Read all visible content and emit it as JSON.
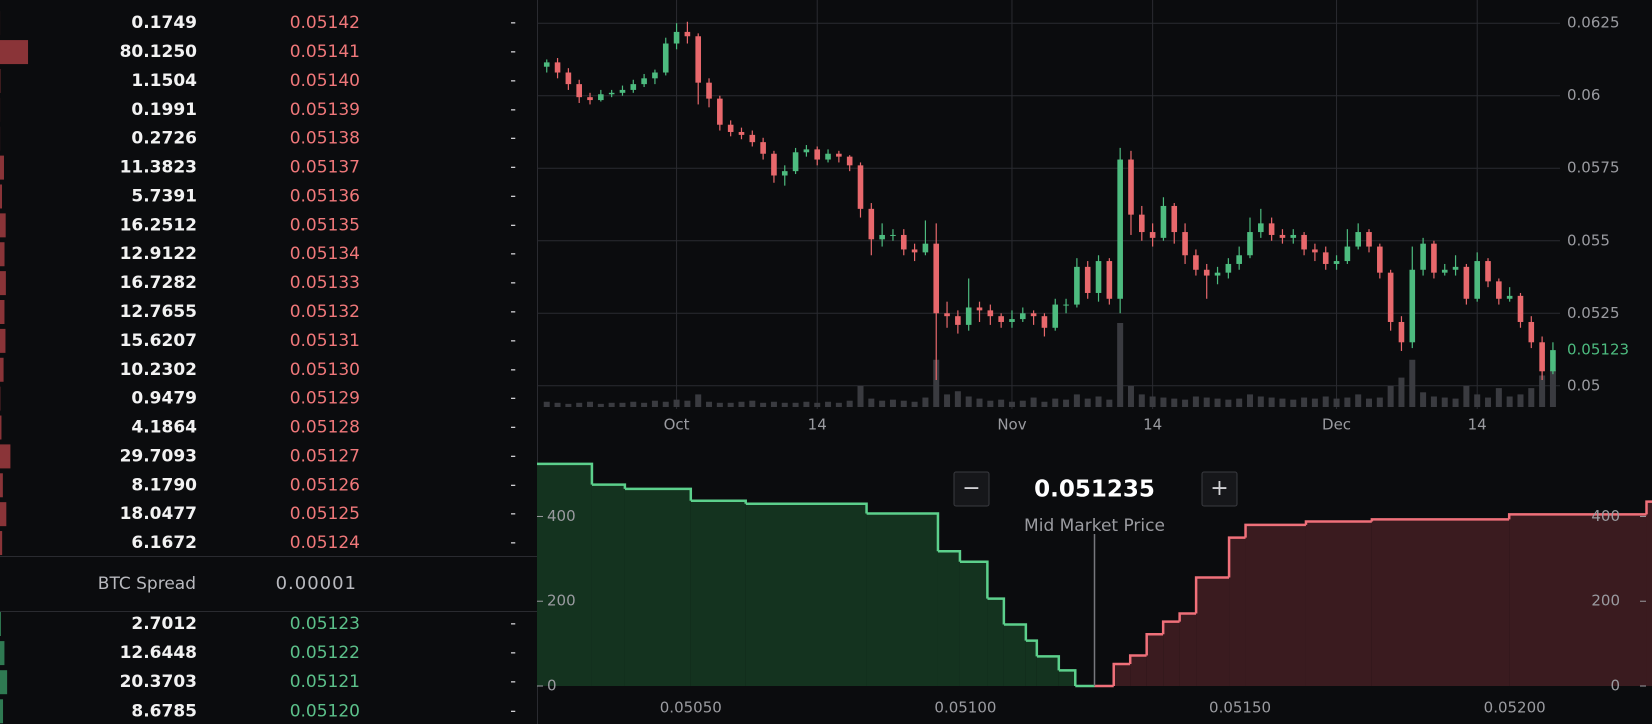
{
  "order_book": {
    "asks": [
      [
        "0.1749",
        "0.05142",
        "-"
      ],
      [
        "80.1250",
        "0.05141",
        "-"
      ],
      [
        "1.1504",
        "0.05140",
        "-"
      ],
      [
        "0.1991",
        "0.05139",
        "-"
      ],
      [
        "0.2726",
        "0.05138",
        "-"
      ],
      [
        "11.3823",
        "0.05137",
        "-"
      ],
      [
        "5.7391",
        "0.05136",
        "-"
      ],
      [
        "16.2512",
        "0.05135",
        "-"
      ],
      [
        "12.9122",
        "0.05134",
        "-"
      ],
      [
        "16.7282",
        "0.05133",
        "-"
      ],
      [
        "12.7655",
        "0.05132",
        "-"
      ],
      [
        "15.6207",
        "0.05131",
        "-"
      ],
      [
        "10.2302",
        "0.05130",
        "-"
      ],
      [
        "0.9479",
        "0.05129",
        "-"
      ],
      [
        "4.1864",
        "0.05128",
        "-"
      ],
      [
        "29.7093",
        "0.05127",
        "-"
      ],
      [
        "8.1790",
        "0.05126",
        "-"
      ],
      [
        "18.0477",
        "0.05125",
        "-"
      ],
      [
        "6.1672",
        "0.05124",
        "-"
      ]
    ],
    "spread": {
      "label": "BTC Spread",
      "value": "0.00001"
    },
    "bids": [
      [
        "2.7012",
        "0.05123",
        "-"
      ],
      [
        "12.6448",
        "0.05122",
        "-"
      ],
      [
        "20.3703",
        "0.05121",
        "-"
      ],
      [
        "8.6785",
        "0.05120",
        "-"
      ]
    ]
  },
  "controls": {
    "minus": "−",
    "plus": "+"
  },
  "chart_data": [
    {
      "type": "candlestick",
      "up_color": "#4dbb7f",
      "down_color": "#e8686c",
      "volume_color": "#3a3b40",
      "grid": true,
      "candles": [
        [
          0.061,
          0.06125,
          0.0608,
          0.06115
        ],
        [
          0.06115,
          0.0613,
          0.0606,
          0.0608
        ],
        [
          0.0608,
          0.06095,
          0.0602,
          0.0604
        ],
        [
          0.0604,
          0.06055,
          0.05975,
          0.05995
        ],
        [
          0.05995,
          0.0601,
          0.0597,
          0.05985
        ],
        [
          0.05985,
          0.0602,
          0.0598,
          0.06005
        ],
        [
          0.06005,
          0.0602,
          0.05995,
          0.0601
        ],
        [
          0.0601,
          0.06035,
          0.06,
          0.0602
        ],
        [
          0.0602,
          0.06055,
          0.0601,
          0.0604
        ],
        [
          0.0604,
          0.06075,
          0.0603,
          0.0606
        ],
        [
          0.0606,
          0.0609,
          0.0604,
          0.0608
        ],
        [
          0.0608,
          0.062,
          0.0607,
          0.0618
        ],
        [
          0.0618,
          0.0625,
          0.0616,
          0.0622
        ],
        [
          0.0622,
          0.06255,
          0.0618,
          0.06205
        ],
        [
          0.06205,
          0.06215,
          0.0597,
          0.06045
        ],
        [
          0.06045,
          0.0606,
          0.0596,
          0.0599
        ],
        [
          0.0599,
          0.06,
          0.0588,
          0.059
        ],
        [
          0.059,
          0.05915,
          0.0586,
          0.05875
        ],
        [
          0.05875,
          0.0589,
          0.0585,
          0.05865
        ],
        [
          0.05865,
          0.0588,
          0.05825,
          0.0584
        ],
        [
          0.0584,
          0.05855,
          0.0578,
          0.058
        ],
        [
          0.058,
          0.0581,
          0.057,
          0.05725
        ],
        [
          0.05725,
          0.0576,
          0.0569,
          0.0574
        ],
        [
          0.0574,
          0.0582,
          0.0573,
          0.05805
        ],
        [
          0.05805,
          0.0583,
          0.0579,
          0.05815
        ],
        [
          0.05815,
          0.05825,
          0.0576,
          0.0578
        ],
        [
          0.0578,
          0.05815,
          0.0577,
          0.058
        ],
        [
          0.058,
          0.0581,
          0.0577,
          0.0579
        ],
        [
          0.0579,
          0.05795,
          0.0574,
          0.0576
        ],
        [
          0.0576,
          0.0577,
          0.0558,
          0.0561
        ],
        [
          0.0561,
          0.0563,
          0.0545,
          0.05505
        ],
        [
          0.05505,
          0.0556,
          0.0548,
          0.0552
        ],
        [
          0.0552,
          0.0554,
          0.055,
          0.0552
        ],
        [
          0.0552,
          0.0554,
          0.0545,
          0.0547
        ],
        [
          0.0547,
          0.0549,
          0.0543,
          0.0546
        ],
        [
          0.0546,
          0.0557,
          0.0545,
          0.0549
        ],
        [
          0.0549,
          0.0556,
          0.0502,
          0.0525
        ],
        [
          0.0525,
          0.0529,
          0.052,
          0.0524
        ],
        [
          0.0524,
          0.0526,
          0.0518,
          0.0521
        ],
        [
          0.0521,
          0.0537,
          0.0519,
          0.0527
        ],
        [
          0.0527,
          0.0529,
          0.0522,
          0.0526
        ],
        [
          0.0526,
          0.0528,
          0.0521,
          0.0524
        ],
        [
          0.0524,
          0.0525,
          0.052,
          0.0522
        ],
        [
          0.0522,
          0.0526,
          0.052,
          0.0523
        ],
        [
          0.0523,
          0.0527,
          0.0522,
          0.0525
        ],
        [
          0.0525,
          0.0526,
          0.0521,
          0.0524
        ],
        [
          0.0524,
          0.0525,
          0.0517,
          0.052
        ],
        [
          0.052,
          0.053,
          0.0519,
          0.0528
        ],
        [
          0.0528,
          0.053,
          0.0525,
          0.0528
        ],
        [
          0.0528,
          0.0544,
          0.0527,
          0.0541
        ],
        [
          0.0541,
          0.0543,
          0.053,
          0.0532
        ],
        [
          0.0532,
          0.0545,
          0.0529,
          0.0543
        ],
        [
          0.0543,
          0.0544,
          0.0528,
          0.053
        ],
        [
          0.053,
          0.0582,
          0.0525,
          0.0578
        ],
        [
          0.0578,
          0.0581,
          0.0552,
          0.0559
        ],
        [
          0.0559,
          0.0562,
          0.055,
          0.0553
        ],
        [
          0.0553,
          0.0556,
          0.0548,
          0.0551
        ],
        [
          0.0551,
          0.0565,
          0.055,
          0.0562
        ],
        [
          0.0562,
          0.0563,
          0.0549,
          0.0553
        ],
        [
          0.0553,
          0.0556,
          0.0542,
          0.0545
        ],
        [
          0.0545,
          0.0547,
          0.0538,
          0.054
        ],
        [
          0.054,
          0.0542,
          0.053,
          0.0538
        ],
        [
          0.0538,
          0.0541,
          0.0535,
          0.0539
        ],
        [
          0.0539,
          0.0544,
          0.0537,
          0.0542
        ],
        [
          0.0542,
          0.0548,
          0.054,
          0.0545
        ],
        [
          0.0545,
          0.0558,
          0.0544,
          0.0553
        ],
        [
          0.0553,
          0.0561,
          0.0551,
          0.0556
        ],
        [
          0.0556,
          0.0558,
          0.055,
          0.0552
        ],
        [
          0.0552,
          0.0554,
          0.0549,
          0.0551
        ],
        [
          0.0551,
          0.0554,
          0.0549,
          0.0552
        ],
        [
          0.0552,
          0.0553,
          0.0545,
          0.0547
        ],
        [
          0.0547,
          0.0549,
          0.0543,
          0.0546
        ],
        [
          0.0546,
          0.0548,
          0.054,
          0.0542
        ],
        [
          0.0542,
          0.0545,
          0.054,
          0.0543
        ],
        [
          0.0543,
          0.0554,
          0.0542,
          0.0548
        ],
        [
          0.0548,
          0.0556,
          0.0547,
          0.0553
        ],
        [
          0.0553,
          0.0554,
          0.0546,
          0.0548
        ],
        [
          0.0548,
          0.0549,
          0.0537,
          0.0539
        ],
        [
          0.0539,
          0.054,
          0.0519,
          0.0522
        ],
        [
          0.0522,
          0.0524,
          0.0512,
          0.0515
        ],
        [
          0.0515,
          0.0548,
          0.0513,
          0.054
        ],
        [
          0.054,
          0.0551,
          0.0538,
          0.0549
        ],
        [
          0.0549,
          0.055,
          0.0537,
          0.0539
        ],
        [
          0.0539,
          0.0542,
          0.0538,
          0.054
        ],
        [
          0.054,
          0.0545,
          0.0538,
          0.0541
        ],
        [
          0.0541,
          0.0542,
          0.0528,
          0.053
        ],
        [
          0.053,
          0.0546,
          0.0529,
          0.0543
        ],
        [
          0.0543,
          0.0544,
          0.0534,
          0.0536
        ],
        [
          0.0536,
          0.0537,
          0.0528,
          0.053
        ],
        [
          0.053,
          0.0534,
          0.0529,
          0.0531
        ],
        [
          0.0531,
          0.0532,
          0.052,
          0.0522
        ],
        [
          0.0522,
          0.0524,
          0.0513,
          0.0515
        ],
        [
          0.0515,
          0.0517,
          0.0502,
          0.0505
        ],
        [
          0.0505,
          0.0515,
          0.0504,
          0.05123
        ]
      ],
      "volume": [
        5,
        4,
        3,
        4,
        5,
        3,
        4,
        4,
        5,
        4,
        6,
        5,
        7,
        6,
        12,
        5,
        4,
        4,
        5,
        6,
        4,
        5,
        4,
        4,
        5,
        4,
        5,
        4,
        6,
        20,
        8,
        6,
        7,
        6,
        5,
        9,
        45,
        12,
        15,
        10,
        8,
        6,
        7,
        5,
        6,
        9,
        5,
        8,
        7,
        12,
        8,
        10,
        7,
        80,
        20,
        12,
        10,
        9,
        8,
        7,
        10,
        9,
        8,
        7,
        8,
        12,
        10,
        9,
        8,
        7,
        9,
        8,
        10,
        8,
        9,
        12,
        8,
        9,
        20,
        28,
        45,
        14,
        10,
        9,
        8,
        20,
        12,
        9,
        18,
        10,
        12,
        18,
        30,
        35
      ],
      "xlim": [
        -0.9,
        94.3
      ],
      "xticks": [
        {
          "value": 12,
          "label": "Oct"
        },
        {
          "value": 25,
          "label": "14"
        },
        {
          "value": 43,
          "label": "Nov"
        },
        {
          "value": 56,
          "label": "14"
        },
        {
          "value": 73,
          "label": "Dec"
        },
        {
          "value": 86,
          "label": "14"
        }
      ],
      "ylim": [
        0.0492,
        0.0633
      ],
      "yticks": [
        0.0625,
        0.06,
        0.0575,
        0.055,
        0.0525,
        0.05
      ],
      "last_price": 0.05123
    },
    {
      "type": "depth",
      "bid_color": "#5cd08c",
      "bid_fill": "#14331f",
      "ask_color": "#f0707a",
      "ask_fill": "#3a1b1f",
      "mid_price": 0.051235,
      "mid_label": "Mid Market Price",
      "bids": {
        "prices": [
          0.0512,
          0.05117,
          0.05113,
          0.05111,
          0.05107,
          0.05104,
          0.05099,
          0.05095,
          0.05082,
          0.0506,
          0.0505,
          0.05038,
          0.05032
        ],
        "depth": [
          37,
          70,
          107,
          145,
          206,
          293,
          318,
          407,
          430,
          437,
          465,
          475,
          524
        ]
      },
      "asks": {
        "prices": [
          0.05127,
          0.0513,
          0.05133,
          0.05136,
          0.05139,
          0.05142,
          0.05148,
          0.05151,
          0.05162,
          0.05174,
          0.05199,
          0.05224
        ],
        "depth": [
          52,
          72,
          122,
          152,
          171,
          256,
          350,
          380,
          388,
          393,
          405,
          435
        ]
      },
      "xlim": [
        0.05022,
        0.05225
      ],
      "xticks": [
        {
          "value": 0.0505,
          "label": "0.05050"
        },
        {
          "value": 0.051,
          "label": "0.05100"
        },
        {
          "value": 0.0515,
          "label": "0.05150"
        },
        {
          "value": 0.052,
          "label": "0.05200"
        }
      ],
      "ylim": [
        0,
        545
      ],
      "yticks": [
        0,
        200,
        400
      ]
    }
  ]
}
